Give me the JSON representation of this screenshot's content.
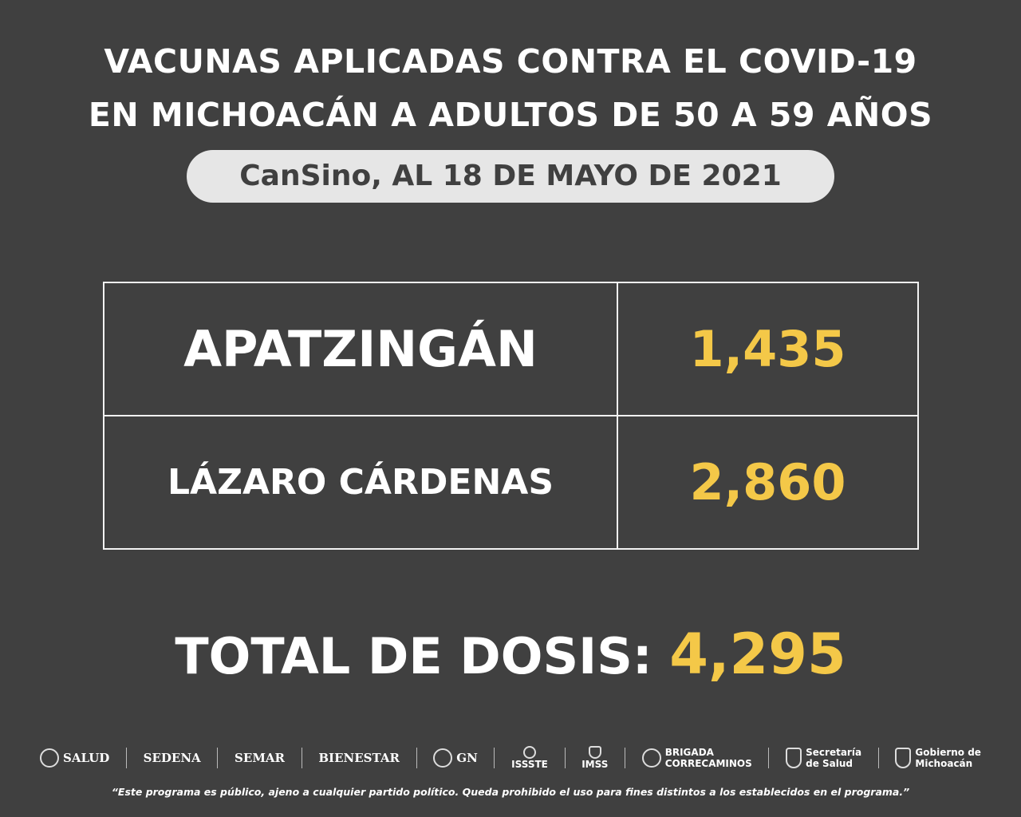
{
  "header": {
    "title_line1": "VACUNAS APLICADAS CONTRA EL COVID-19",
    "title_line2": "EN MICHOACÁN A ADULTOS DE 50 A 59 AÑOS",
    "subtitle": "CanSino, AL 18 DE MAYO DE 2021"
  },
  "table": {
    "rows": [
      {
        "municipality": "APATZINGÁN",
        "doses": "1,435"
      },
      {
        "municipality": "LÁZARO CÁRDENAS",
        "doses": "2,860"
      }
    ]
  },
  "total": {
    "label": "TOTAL DE DOSIS:",
    "value": "4,295"
  },
  "logos": [
    {
      "name": "SALUD",
      "icon": "eagle-seal-icon"
    },
    {
      "name": "SEDENA"
    },
    {
      "name": "SEMAR"
    },
    {
      "name": "BIENESTAR"
    },
    {
      "name": "GN",
      "icon": "gn-seal-icon"
    },
    {
      "name": "ISSSTE",
      "icon": "issste-icon"
    },
    {
      "name": "IMSS",
      "icon": "imss-icon"
    },
    {
      "name": "BRIGADA",
      "name2": "CORRECAMINOS",
      "icon": "correcaminos-icon"
    },
    {
      "name": "Secretaría",
      "name2": "de Salud",
      "icon": "michoacan-shield-icon"
    },
    {
      "name": "Gobierno de",
      "name2": "Michoacán",
      "icon": "michoacan-shield-icon"
    }
  ],
  "footer": {
    "disclaimer": "“Este programa es público, ajeno a cualquier partido político. Queda prohibido el uso para fines distintos a los establecidos en el programa.”"
  },
  "colors": {
    "background": "#404040",
    "accent_yellow": "#f4c848",
    "pill": "#e6e6e6",
    "text": "#ffffff"
  }
}
